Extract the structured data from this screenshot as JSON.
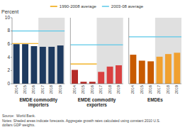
{
  "chart_data": {
    "type": "bar",
    "y_label": "Percent",
    "notes": "Source:  World Bank.\nNotes: Shaded areas indicate forecasts. Aggregate growth rates calculated using constant 2010 U.S.\ndollars GDP weights.",
    "categories": [
      "2014",
      "2015",
      "2016",
      "2017",
      "2018",
      "2019"
    ],
    "forecast_from": "2017",
    "shade_color": "#e0e0e0",
    "ylim": [
      0,
      10
    ],
    "yticks": [
      0,
      2,
      4,
      6,
      8,
      10
    ],
    "grid": false,
    "legend": "top",
    "panels": [
      {
        "title": "EMDE commodity\nimporters",
        "values": [
          6.0,
          6.0,
          5.7,
          5.6,
          5.6,
          5.8
        ],
        "colors": [
          "#1e3a5f",
          "#1e3a5f",
          "#1e3a5f",
          "#1e3a5f",
          "#1e3a5f",
          "#1e3a5f"
        ],
        "reference_lines": [
          {
            "name": "1990-2008 average",
            "color": "#f0a500",
            "value": 6.1,
            "end": "2016"
          },
          {
            "name": "2003-08 average",
            "color": "#5bc8e8",
            "value": 8.0
          }
        ]
      },
      {
        "title": "EMDE commodity\nexporters",
        "values": [
          2.1,
          0.3,
          0.3,
          1.8,
          2.6,
          2.8
        ],
        "colors": [
          "#b52b27",
          "#b52b27",
          "#b52b27",
          "#d94040",
          "#d94040",
          "#d94040"
        ],
        "tick_labels": "x",
        "reference_lines": [
          {
            "name": "1990-2008 average",
            "color": "#f0a500",
            "value": 3.0,
            "end": "2016"
          },
          {
            "name": "2003-08 average",
            "color": "#5bc8e8",
            "value": 5.9
          }
        ]
      },
      {
        "title": "EMDEs",
        "values": [
          4.4,
          3.5,
          3.4,
          4.1,
          4.5,
          4.7
        ],
        "colors": [
          "#c85a00",
          "#c85a00",
          "#c85a00",
          "#f0a030",
          "#f0a030",
          "#f0a030"
        ],
        "tick_labels": "x",
        "reference_lines": [
          {
            "name": "2003-08 average",
            "color": "#5bc8e8",
            "value": 7.1
          }
        ]
      }
    ]
  }
}
